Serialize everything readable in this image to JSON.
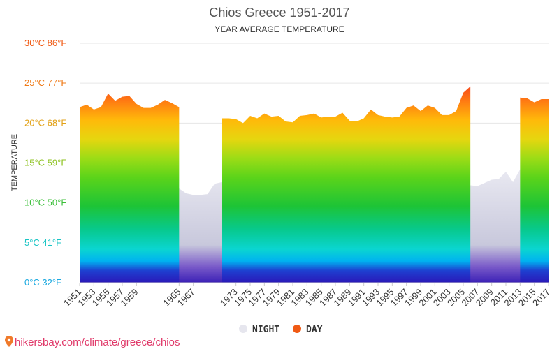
{
  "header": {
    "title": "Chios Greece 1951-2017",
    "subtitle": "YEAR AVERAGE TEMPERATURE"
  },
  "source": {
    "text": "hikersbay.com/climate/greece/chios",
    "icon": "map-pin-icon"
  },
  "chart_data": {
    "type": "area",
    "title": "Chios Greece 1951-2017",
    "subtitle": "YEAR AVERAGE TEMPERATURE",
    "ylabel": "TEMPERATURE",
    "xlabel": "",
    "x_range": [
      1951,
      2017
    ],
    "ylim": [
      0,
      30
    ],
    "yticks": [
      {
        "value": 0,
        "label": "0°C 32°F",
        "color": "#1aa9e0"
      },
      {
        "value": 5,
        "label": "5°C 41°F",
        "color": "#18c4c4"
      },
      {
        "value": 10,
        "label": "10°C 50°F",
        "color": "#3cbf3a"
      },
      {
        "value": 15,
        "label": "15°C 59°F",
        "color": "#8cc21e"
      },
      {
        "value": 20,
        "label": "20°C 68°F",
        "color": "#e2a218"
      },
      {
        "value": 25,
        "label": "25°C 77°F",
        "color": "#ef7a17"
      },
      {
        "value": 30,
        "label": "30°C 86°F",
        "color": "#f05a14"
      }
    ],
    "xticks": [
      1951,
      1953,
      1955,
      1957,
      1959,
      1965,
      1967,
      1973,
      1975,
      1977,
      1979,
      1981,
      1983,
      1985,
      1987,
      1989,
      1991,
      1993,
      1995,
      1997,
      1999,
      2001,
      2003,
      2005,
      2007,
      2009,
      2011,
      2013,
      2015,
      2017
    ],
    "legend_position": "bottom",
    "grid": true,
    "series": [
      {
        "name": "NIGHT",
        "color": "#e6e6ee",
        "segments": [
          {
            "x": [
              1951,
              1957
            ],
            "y": [
              2.2,
              2.2
            ]
          },
          {
            "x": [
              1957,
              1958,
              1958.7
            ],
            "y": [
              10.0,
              10.1,
              10.2
            ]
          },
          {
            "x": [
              1958.7,
              1961
            ],
            "y": [
              2.2,
              2.2
            ]
          },
          {
            "x": [
              1961,
              1962,
              1963,
              1964,
              1965,
              1966,
              1967,
              1968,
              1969,
              1970,
              1971,
              1972,
              1973,
              1974,
              1975,
              1976,
              1977,
              1978,
              1979,
              1980,
              1981,
              1982,
              1983,
              1984,
              1985,
              1986,
              1987,
              1988,
              1989,
              1990,
              1991,
              1992,
              1993,
              1994,
              1995,
              1996,
              1997,
              1998,
              1999,
              2000,
              2001,
              2002,
              2003,
              2004,
              2005,
              2006,
              2007,
              2008,
              2009,
              2010,
              2011,
              2012,
              2013,
              2014,
              2015,
              2016,
              2017
            ],
            "y": [
              10.5,
              10.9,
              11.5,
              12.6,
              11.8,
              11.2,
              11.0,
              11.0,
              11.1,
              12.4,
              12.6,
              12.5,
              11.8,
              12.6,
              12.6,
              12.6,
              12.4,
              12.1,
              12.5,
              12.2,
              11.9,
              11.8,
              12.6,
              12.7,
              12.7,
              12.9,
              12.5,
              12.6,
              12.5,
              12.4,
              12.9,
              12.5,
              12.1,
              12.2,
              13.6,
              12.9,
              12.9,
              12.7,
              12.8,
              13.8,
              12.8,
              14.2,
              13.5,
              13.7,
              13.6,
              12.2,
              12.1,
              12.5,
              12.9,
              13.0,
              13.9,
              12.6,
              14.2,
              14.3,
              14.4,
              14.6,
              14.4
            ]
          }
        ]
      },
      {
        "name": "DAY",
        "color": "#f05a14",
        "segments": [
          {
            "x": [
              1951,
              1952,
              1953,
              1954,
              1955,
              1956,
              1957,
              1958,
              1959,
              1960,
              1961,
              1962,
              1963,
              1964,
              1965
            ],
            "y": [
              22.0,
              22.3,
              21.7,
              22.0,
              23.7,
              22.8,
              23.3,
              23.4,
              22.4,
              21.9,
              21.9,
              22.3,
              22.9,
              22.5,
              22.0
            ]
          },
          {
            "x": [
              1971,
              1972,
              1973,
              1974,
              1975,
              1976,
              1977,
              1978,
              1979,
              1980,
              1981,
              1982,
              1983,
              1984,
              1985,
              1986,
              1987,
              1988,
              1989,
              1990,
              1991,
              1992,
              1993,
              1994,
              1995,
              1996,
              1997,
              1998,
              1999,
              2000,
              2001,
              2002,
              2003,
              2004,
              2005,
              2006
            ],
            "y": [
              20.6,
              20.6,
              20.5,
              20.0,
              20.9,
              20.6,
              21.2,
              20.8,
              20.9,
              20.2,
              20.1,
              20.9,
              21.0,
              21.2,
              20.7,
              20.8,
              20.8,
              21.3,
              20.3,
              20.2,
              20.6,
              21.7,
              21.0,
              20.8,
              20.7,
              20.8,
              21.9,
              22.2,
              21.5,
              22.2,
              21.9,
              21.0,
              21.0,
              21.5,
              23.8,
              24.6
            ]
          },
          {
            "x": [
              2013,
              2014,
              2015,
              2016,
              2017
            ],
            "y": [
              23.2,
              23.1,
              22.6,
              23.0,
              23.0
            ]
          }
        ]
      }
    ]
  }
}
